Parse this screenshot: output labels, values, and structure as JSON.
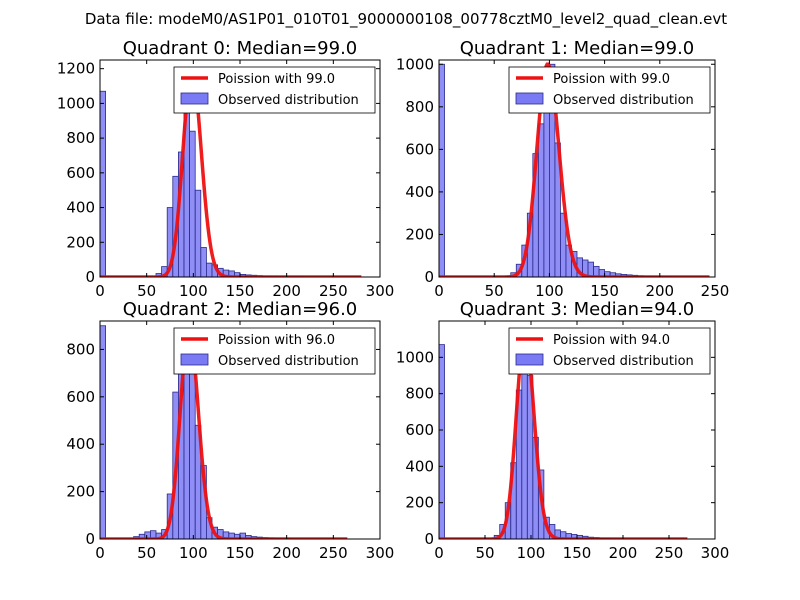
{
  "figure": {
    "suptitle": "Data file: modeM0/AS1P01_010T01_9000000108_00778cztM0_level2_quad_clean.evt"
  },
  "colors": {
    "hist_fill": "#7a7af5",
    "hist_edge": "#2a2a8a",
    "fit_line": "#ee1111",
    "axes": "#000000"
  },
  "chart_data": [
    {
      "type": "bar",
      "title": "Quadrant 0: Median=99.0",
      "xlim": [
        0,
        300
      ],
      "ylim": [
        0,
        1250
      ],
      "xticks": [
        0,
        50,
        100,
        150,
        200,
        250,
        300
      ],
      "yticks": [
        0,
        200,
        400,
        600,
        800,
        1000,
        1200
      ],
      "legend_position": "top-right",
      "legend": [
        "Poission with 99.0",
        "Observed distribution"
      ],
      "bin_width": 6,
      "histogram": {
        "name": "Observed distribution",
        "bin_starts": [
          0,
          60,
          66,
          72,
          78,
          84,
          90,
          96,
          102,
          108,
          114,
          120,
          126,
          132,
          138,
          144,
          150,
          156,
          162,
          168,
          174,
          180,
          186,
          192,
          198,
          204,
          210,
          216,
          222,
          228,
          234,
          240
        ],
        "counts": [
          1070,
          20,
          60,
          400,
          580,
          720,
          1180,
          840,
          500,
          170,
          80,
          70,
          50,
          40,
          35,
          25,
          15,
          12,
          10,
          8,
          6,
          5,
          4,
          3,
          2,
          2,
          2,
          1,
          1,
          1,
          1,
          1
        ]
      },
      "fit_curve": {
        "name": "Poission with 99.0",
        "mean": 99.0,
        "x_range": [
          0,
          280
        ]
      }
    },
    {
      "type": "bar",
      "title": "Quadrant 1: Median=99.0",
      "xlim": [
        0,
        250
      ],
      "ylim": [
        0,
        1020
      ],
      "xticks": [
        0,
        50,
        100,
        150,
        200,
        250
      ],
      "yticks": [
        0,
        200,
        400,
        600,
        800,
        1000
      ],
      "legend_position": "top-right",
      "legend": [
        "Poission with 99.0",
        "Observed distribution"
      ],
      "bin_width": 5,
      "histogram": {
        "name": "Observed distribution",
        "bin_starts": [
          0,
          60,
          65,
          70,
          75,
          80,
          85,
          90,
          95,
          100,
          105,
          110,
          115,
          120,
          125,
          130,
          135,
          140,
          145,
          150,
          155,
          160,
          165,
          170,
          175,
          180,
          185,
          190,
          195,
          200,
          205
        ],
        "counts": [
          1000,
          5,
          20,
          60,
          150,
          300,
          580,
          720,
          830,
          1000,
          630,
          300,
          150,
          120,
          90,
          80,
          70,
          50,
          35,
          25,
          20,
          15,
          12,
          10,
          8,
          6,
          5,
          4,
          3,
          2,
          2
        ]
      },
      "fit_curve": {
        "name": "Poission with 99.0",
        "mean": 99.0,
        "x_range": [
          0,
          245
        ]
      }
    },
    {
      "type": "bar",
      "title": "Quadrant 2: Median=96.0",
      "xlim": [
        0,
        300
      ],
      "ylim": [
        0,
        920
      ],
      "xticks": [
        0,
        50,
        100,
        150,
        200,
        250,
        300
      ],
      "yticks": [
        0,
        200,
        400,
        600,
        800
      ],
      "legend_position": "top-right",
      "legend": [
        "Poission with 96.0",
        "Observed distribution"
      ],
      "bin_width": 6,
      "histogram": {
        "name": "Observed distribution",
        "bin_starts": [
          0,
          36,
          42,
          48,
          54,
          60,
          66,
          72,
          78,
          84,
          90,
          96,
          102,
          108,
          114,
          120,
          126,
          132,
          138,
          144,
          150,
          156,
          162,
          168,
          174,
          180,
          186,
          192,
          198
        ],
        "counts": [
          900,
          10,
          20,
          30,
          35,
          25,
          40,
          190,
          620,
          800,
          880,
          720,
          480,
          310,
          90,
          50,
          40,
          30,
          25,
          20,
          25,
          15,
          10,
          8,
          6,
          5,
          4,
          3,
          2
        ]
      },
      "fit_curve": {
        "name": "Poission with 96.0",
        "mean": 96.0,
        "x_range": [
          0,
          265
        ]
      }
    },
    {
      "type": "bar",
      "title": "Quadrant 3: Median=94.0",
      "xlim": [
        0,
        300
      ],
      "ylim": [
        0,
        1200
      ],
      "xticks": [
        0,
        50,
        100,
        150,
        200,
        250,
        300
      ],
      "yticks": [
        0,
        200,
        400,
        600,
        800,
        1000
      ],
      "legend_position": "top-right",
      "legend": [
        "Poission with 94.0",
        "Observed distribution"
      ],
      "bin_width": 6,
      "histogram": {
        "name": "Observed distribution",
        "bin_starts": [
          0,
          60,
          66,
          72,
          78,
          84,
          90,
          96,
          102,
          108,
          114,
          120,
          126,
          132,
          138,
          144,
          150,
          156,
          162,
          168,
          174,
          180
        ],
        "counts": [
          1070,
          20,
          80,
          200,
          420,
          820,
          1120,
          900,
          560,
          380,
          120,
          80,
          50,
          40,
          30,
          25,
          20,
          15,
          10,
          8,
          5,
          4
        ]
      },
      "fit_curve": {
        "name": "Poission with 94.0",
        "mean": 94.0,
        "x_range": [
          0,
          270
        ]
      }
    }
  ]
}
